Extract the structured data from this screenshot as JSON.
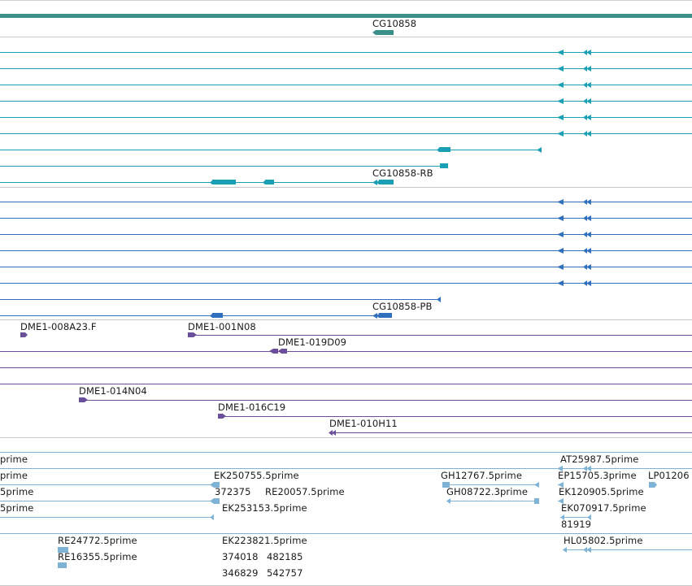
{
  "colors": {
    "gene": "#3a8f8a",
    "transcript_rb": "#1a9fb5",
    "transcript_pb": "#2f6fbe",
    "bac": "#6a4f9a",
    "est": "#7eb3d6",
    "divider": "#c8c8c8"
  },
  "tracks": {
    "gene": {
      "label": "CG10858"
    },
    "transcripts_rb": {
      "label": "CG10858-RB"
    },
    "transcripts_pb": {
      "label": "CG10858-PB"
    },
    "bac_ends": {
      "labels": [
        "DME1-008A23.F",
        "DME1-001N08",
        "DME1-019D09",
        "DME1-014N04",
        "DME1-016C19",
        "DME1-010H11"
      ]
    },
    "ests": {
      "labels": [
        "prime",
        "AT25987.5prime",
        "prime",
        "EK250755.5prime",
        "GH12767.5prime",
        "EP15705.3prime",
        "LP01206",
        "5prime",
        "372375",
        "RE20057.5prime",
        "GH08722.3prime",
        "EK120905.5prime",
        "5prime",
        "EK253153.5prime",
        "EK070917.5prime",
        "81919",
        "RE24772.5prime",
        "EK223821.5prime",
        "HL05802.5prime",
        "RE16355.5prime",
        "374018",
        "482185",
        "346829",
        "542757"
      ]
    }
  }
}
